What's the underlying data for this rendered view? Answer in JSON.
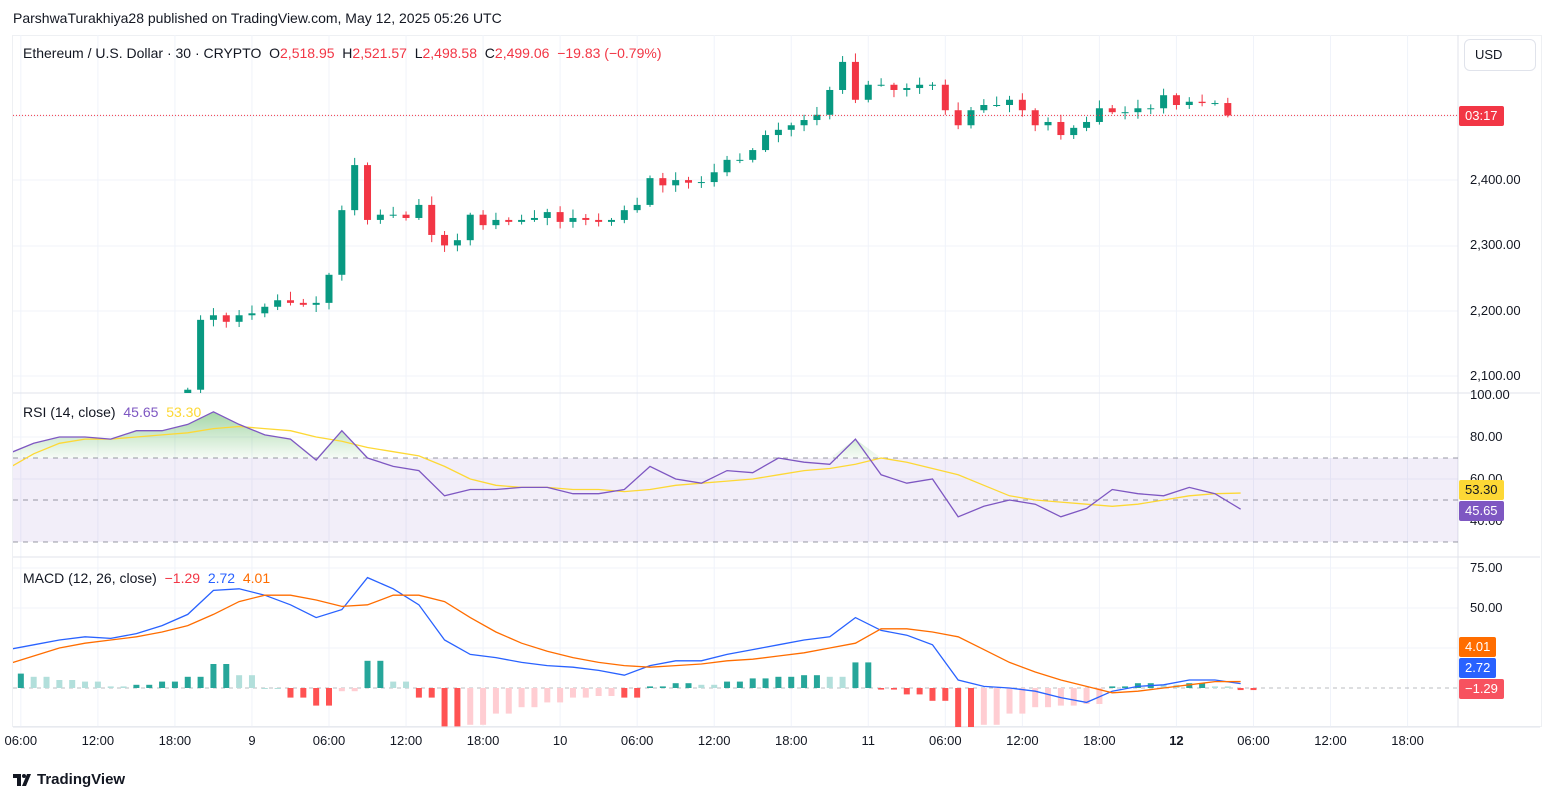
{
  "publisher_line": "ParshwaTurakhiya28 published on TradingView.com, May 12, 2025 05:26 UTC",
  "legend": {
    "symbol": "Ethereum / U.S. Dollar · 30 · CRYPTO",
    "o_label": "O",
    "o": "2,518.95",
    "h_label": "H",
    "h": "2,521.57",
    "l_label": "L",
    "l": "2,498.58",
    "c_label": "C",
    "c": "2,499.06",
    "change": "−19.83 (−0.79%)"
  },
  "currency_button": "USD",
  "countdown": "03:17",
  "logo_text": "TradingView",
  "colors": {
    "up": "#089981",
    "down": "#f23645",
    "rsi": "#7e57c2",
    "rsi_ma": "#fdd835",
    "macd": "#2962ff",
    "signal": "#ff6d00"
  },
  "chart_data": [
    {
      "type": "candlestick",
      "title": "Ethereum / U.S. Dollar · 30 · CRYPTO",
      "yticks": [
        "2,100.00",
        "2,200.00",
        "2,300.00",
        "2,400.00"
      ],
      "ylim": [
        2050,
        2620
      ],
      "x_start": "May 8 19:00",
      "x_step": "1h",
      "first_open": 2030,
      "closes": [
        2079,
        2186,
        2193,
        2183,
        2193,
        2196,
        2206,
        2216,
        2212,
        2209,
        2212,
        2255,
        2354,
        2423,
        2339,
        2347,
        2347,
        2342,
        2362,
        2316,
        2300,
        2308,
        2347,
        2331,
        2339,
        2336,
        2339,
        2342,
        2351,
        2336,
        2342,
        2339,
        2336,
        2339,
        2354,
        2362,
        2403,
        2392,
        2400,
        2396,
        2397,
        2412,
        2431,
        2431,
        2446,
        2469,
        2477,
        2484,
        2492,
        2500,
        2538,
        2581,
        2523,
        2546,
        2546,
        2538,
        2541,
        2546,
        2546,
        2507,
        2484,
        2507,
        2515,
        2515,
        2523,
        2507,
        2484,
        2489,
        2469,
        2480,
        2489,
        2510,
        2504,
        2504,
        2510,
        2510,
        2530,
        2515,
        2520,
        2518,
        2518,
        2499.06
      ],
      "last_price": 2499.06
    },
    {
      "type": "line",
      "title": "RSI (14, close)",
      "values_label": {
        "rsi": "45.65",
        "ma": "53.30"
      },
      "yticks": [
        "100.00",
        "80.00",
        "60.00",
        "40.00"
      ],
      "ylim": [
        30,
        100
      ],
      "bands": [
        30,
        50,
        70
      ],
      "x_start": "May 8 05:00",
      "x_step": "2h",
      "series": [
        {
          "key": "rsi",
          "values": [
            72,
            77,
            80,
            80,
            79,
            83,
            83,
            86,
            92,
            86,
            81,
            79,
            69,
            83,
            70,
            66,
            64,
            52,
            55,
            55,
            56,
            56,
            53,
            53,
            55,
            66,
            60,
            58,
            64,
            63,
            70,
            68,
            67,
            79,
            62,
            58,
            60,
            42,
            47,
            50,
            48,
            42,
            46,
            55,
            53,
            52,
            56,
            53,
            45.65
          ]
        },
        {
          "key": "ma",
          "values": [
            65,
            72,
            77,
            79,
            79,
            80,
            81,
            82,
            84,
            85,
            84,
            83,
            80,
            78,
            75,
            73,
            71,
            66,
            60,
            57,
            56,
            56,
            55,
            55,
            54,
            55,
            57,
            58,
            59,
            60,
            62,
            64,
            65,
            67,
            70,
            68,
            65,
            62,
            57,
            52,
            50,
            49,
            48,
            47,
            48,
            50,
            52,
            53,
            53.3
          ]
        }
      ]
    },
    {
      "type": "line+bar",
      "title": "MACD (12, 26, close)",
      "values_label": {
        "histogram": "−1.29",
        "macd": "2.72",
        "signal": "4.01"
      },
      "yticks": [
        "75.00",
        "50.00"
      ],
      "ylim": [
        -15,
        80
      ],
      "x_start": "May 8 05:00",
      "x_step": "2h",
      "series": [
        {
          "key": "macd",
          "values": [
            24,
            27,
            30,
            32,
            31,
            34,
            39,
            46,
            61,
            62,
            58,
            52,
            44,
            49,
            69,
            62,
            52,
            30,
            21,
            19,
            16,
            14,
            13,
            11,
            8,
            14,
            17,
            17,
            21,
            24,
            27,
            30,
            32,
            44,
            36,
            33,
            27,
            5,
            1,
            0,
            -2,
            -6,
            -9,
            -2,
            1,
            2,
            5,
            5,
            2.72
          ]
        },
        {
          "key": "signal",
          "values": [
            15,
            20,
            25,
            28,
            30,
            32,
            35,
            39,
            46,
            54,
            58,
            58,
            55,
            51,
            52,
            58,
            58,
            54,
            44,
            35,
            28,
            23,
            19,
            16,
            14,
            13,
            14,
            15,
            17,
            18,
            20,
            22,
            25,
            28,
            37,
            37,
            35,
            32,
            24,
            16,
            10,
            5,
            1,
            -3,
            -2,
            0,
            2,
            4,
            4.01
          ]
        }
      ]
    }
  ],
  "time_axis": [
    "06:00",
    "12:00",
    "18:00",
    "9",
    "06:00",
    "12:00",
    "18:00",
    "10",
    "06:00",
    "12:00",
    "18:00",
    "11",
    "06:00",
    "12:00",
    "18:00",
    "12",
    "06:00",
    "12:00",
    "18:00"
  ]
}
